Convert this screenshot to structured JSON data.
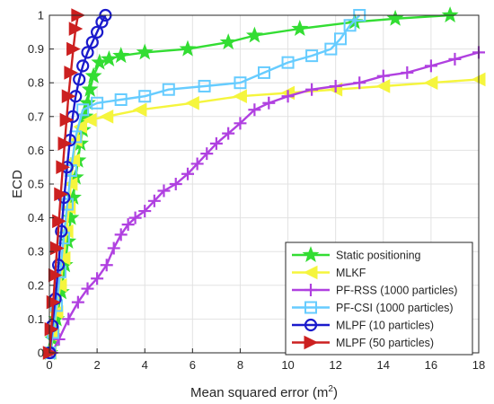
{
  "chart_data": {
    "type": "line",
    "title": "",
    "xlabel": "Mean squared error (m",
    "xlabel_sup": "2",
    "xlabel_close": ")",
    "ylabel": "ECD",
    "xlim": [
      0,
      18
    ],
    "ylim": [
      0,
      1
    ],
    "x_ticks": [
      0,
      2,
      4,
      6,
      8,
      10,
      12,
      14,
      16,
      18
    ],
    "x_tick_labels": [
      "0",
      "2",
      "4",
      "6",
      "8",
      "10",
      "12",
      "14",
      "16",
      "18"
    ],
    "y_ticks": [
      0,
      0.1,
      0.2,
      0.3,
      0.4,
      0.5,
      0.6,
      0.7,
      0.8,
      0.9,
      1
    ],
    "y_tick_labels": [
      "0",
      "0.1",
      "0.2",
      "0.3",
      "0.4",
      "0.5",
      "0.6",
      "0.7",
      "0.8",
      "0.9",
      "1"
    ],
    "grid": true,
    "legend_position": "bottom-right",
    "series": [
      {
        "name": "Static positioning",
        "color": "#33dd33",
        "marker": "star",
        "x": [
          0.02,
          0.15,
          0.3,
          0.5,
          0.65,
          0.78,
          0.9,
          1.0,
          1.1,
          1.2,
          1.3,
          1.4,
          1.5,
          1.6,
          1.7,
          1.85,
          2.1,
          2.5,
          3.0,
          4.0,
          5.8,
          7.5,
          8.6,
          10.5,
          12.8,
          14.5,
          16.8
        ],
        "y": [
          0.0,
          0.04,
          0.1,
          0.18,
          0.26,
          0.33,
          0.4,
          0.46,
          0.52,
          0.57,
          0.62,
          0.66,
          0.7,
          0.74,
          0.78,
          0.82,
          0.86,
          0.87,
          0.88,
          0.89,
          0.9,
          0.92,
          0.94,
          0.96,
          0.98,
          0.99,
          1.0
        ]
      },
      {
        "name": "MLKF",
        "color": "#f5f53d",
        "marker": "triangle-left",
        "x": [
          0.02,
          0.15,
          0.3,
          0.45,
          0.6,
          0.72,
          0.82,
          0.9,
          1.0,
          1.1,
          1.3,
          1.7,
          2.4,
          3.8,
          6.0,
          8.0,
          10.0,
          12.0,
          14.0,
          16.0,
          18.0
        ],
        "y": [
          0.0,
          0.05,
          0.12,
          0.2,
          0.28,
          0.36,
          0.43,
          0.5,
          0.57,
          0.63,
          0.67,
          0.69,
          0.7,
          0.72,
          0.74,
          0.76,
          0.77,
          0.78,
          0.79,
          0.8,
          0.81
        ]
      },
      {
        "name": "PF-RSS (1000 particles)",
        "color": "#b040e0",
        "marker": "plus",
        "x": [
          0.1,
          0.4,
          0.8,
          1.2,
          1.6,
          2.0,
          2.4,
          2.7,
          3.0,
          3.3,
          3.6,
          4.0,
          4.4,
          4.8,
          5.3,
          5.8,
          6.2,
          6.6,
          7.0,
          7.5,
          8.0,
          8.6,
          9.2,
          10.0,
          11.0,
          12.0,
          13.0,
          14.0,
          15.0,
          16.0,
          17.0,
          18.0
        ],
        "y": [
          0.0,
          0.04,
          0.1,
          0.15,
          0.19,
          0.22,
          0.26,
          0.31,
          0.35,
          0.38,
          0.4,
          0.42,
          0.45,
          0.48,
          0.5,
          0.53,
          0.56,
          0.59,
          0.62,
          0.65,
          0.68,
          0.72,
          0.74,
          0.76,
          0.78,
          0.79,
          0.8,
          0.82,
          0.83,
          0.85,
          0.87,
          0.89
        ]
      },
      {
        "name": "PF-CSI (1000 particles)",
        "color": "#66ccff",
        "marker": "square",
        "x": [
          0.02,
          0.15,
          0.3,
          0.45,
          0.6,
          0.75,
          0.9,
          1.1,
          1.4,
          2.0,
          3.0,
          4.0,
          5.0,
          6.5,
          8.0,
          9.0,
          10.0,
          11.0,
          11.8,
          12.2,
          12.6,
          13.0
        ],
        "y": [
          0.0,
          0.06,
          0.14,
          0.24,
          0.34,
          0.44,
          0.54,
          0.64,
          0.72,
          0.74,
          0.75,
          0.76,
          0.78,
          0.79,
          0.8,
          0.83,
          0.86,
          0.88,
          0.9,
          0.93,
          0.97,
          1.0
        ]
      },
      {
        "name": "MLPF (10 particles)",
        "color": "#1a1acc",
        "marker": "circle",
        "x": [
          0.02,
          0.12,
          0.25,
          0.38,
          0.5,
          0.62,
          0.74,
          0.86,
          0.98,
          1.1,
          1.25,
          1.4,
          1.6,
          1.8,
          2.0,
          2.2,
          2.35
        ],
        "y": [
          0.0,
          0.08,
          0.16,
          0.26,
          0.36,
          0.46,
          0.55,
          0.63,
          0.7,
          0.76,
          0.81,
          0.85,
          0.89,
          0.92,
          0.95,
          0.98,
          1.0
        ]
      },
      {
        "name": "MLPF (50 particles)",
        "color": "#cc2020",
        "marker": "triangle-right",
        "x": [
          0.01,
          0.08,
          0.16,
          0.24,
          0.32,
          0.4,
          0.48,
          0.56,
          0.64,
          0.72,
          0.8,
          0.9,
          1.0,
          1.1,
          1.2
        ],
        "y": [
          0.0,
          0.07,
          0.15,
          0.23,
          0.31,
          0.39,
          0.47,
          0.55,
          0.62,
          0.69,
          0.76,
          0.83,
          0.9,
          0.96,
          1.0
        ]
      }
    ]
  }
}
